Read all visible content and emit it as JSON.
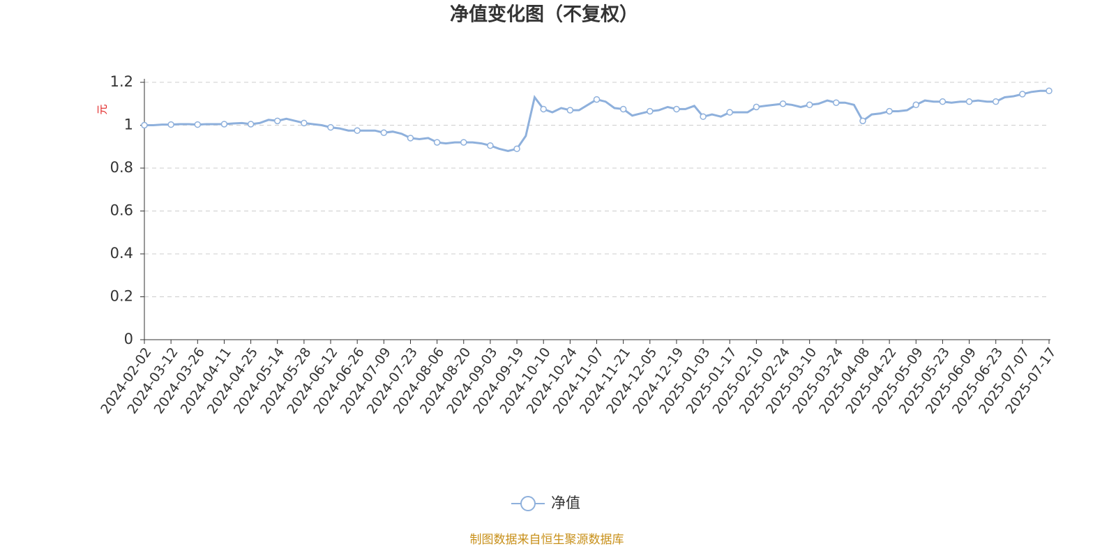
{
  "chart_data": {
    "type": "line",
    "title": "净值变化图（不复权）",
    "y_label": "元",
    "source": "制图数据来自恒生聚源数据库",
    "categories": [
      "2024-02-02",
      null,
      null,
      "2024-03-12",
      null,
      null,
      "2024-03-26",
      null,
      null,
      "2024-04-11",
      null,
      null,
      "2024-04-25",
      null,
      null,
      "2024-05-14",
      null,
      null,
      "2024-05-28",
      null,
      null,
      "2024-06-12",
      null,
      null,
      "2024-06-26",
      null,
      null,
      "2024-07-09",
      null,
      null,
      "2024-07-23",
      null,
      null,
      "2024-08-06",
      null,
      null,
      "2024-08-20",
      null,
      null,
      "2024-09-03",
      null,
      null,
      "2024-09-19",
      null,
      null,
      "2024-10-10",
      null,
      null,
      "2024-10-24",
      null,
      null,
      "2024-11-07",
      null,
      null,
      "2024-11-21",
      null,
      null,
      "2024-12-05",
      null,
      null,
      "2024-12-19",
      null,
      null,
      "2025-01-03",
      null,
      null,
      "2025-01-17",
      null,
      null,
      "2025-02-10",
      null,
      null,
      "2025-02-24",
      null,
      null,
      "2025-03-10",
      null,
      null,
      "2025-03-24",
      null,
      null,
      "2025-04-08",
      null,
      null,
      "2025-04-22",
      null,
      null,
      "2025-05-09",
      null,
      null,
      "2025-05-23",
      null,
      null,
      "2025-06-09",
      null,
      null,
      "2025-06-23",
      null,
      null,
      "2025-07-07",
      null,
      null,
      "2025-07-17"
    ],
    "series": [
      {
        "name": "净值",
        "color": "#8eb0dc",
        "values": [
          1.0,
          1.0,
          1.003,
          1.003,
          1.005,
          1.005,
          1.003,
          1.005,
          1.005,
          1.005,
          1.008,
          1.01,
          1.005,
          1.01,
          1.025,
          1.02,
          1.03,
          1.02,
          1.01,
          1.005,
          1.0,
          0.99,
          0.985,
          0.975,
          0.975,
          0.975,
          0.975,
          0.965,
          0.97,
          0.96,
          0.94,
          0.935,
          0.94,
          0.92,
          0.915,
          0.92,
          0.92,
          0.92,
          0.915,
          0.905,
          0.89,
          0.88,
          0.89,
          0.95,
          1.13,
          1.075,
          1.06,
          1.08,
          1.07,
          1.07,
          1.095,
          1.12,
          1.11,
          1.08,
          1.075,
          1.045,
          1.055,
          1.065,
          1.07,
          1.085,
          1.075,
          1.075,
          1.09,
          1.04,
          1.05,
          1.04,
          1.06,
          1.06,
          1.06,
          1.085,
          1.09,
          1.095,
          1.1,
          1.095,
          1.085,
          1.095,
          1.1,
          1.115,
          1.105,
          1.105,
          1.095,
          1.02,
          1.05,
          1.055,
          1.065,
          1.065,
          1.07,
          1.095,
          1.115,
          1.11,
          1.11,
          1.105,
          1.11,
          1.11,
          1.115,
          1.11,
          1.11,
          1.13,
          1.135,
          1.145,
          1.155,
          1.16,
          1.16
        ]
      }
    ],
    "ylim": [
      0,
      1.2
    ],
    "yticks": [
      0,
      0.2,
      0.4,
      0.6,
      0.8,
      1,
      1.2
    ],
    "grid": true
  }
}
